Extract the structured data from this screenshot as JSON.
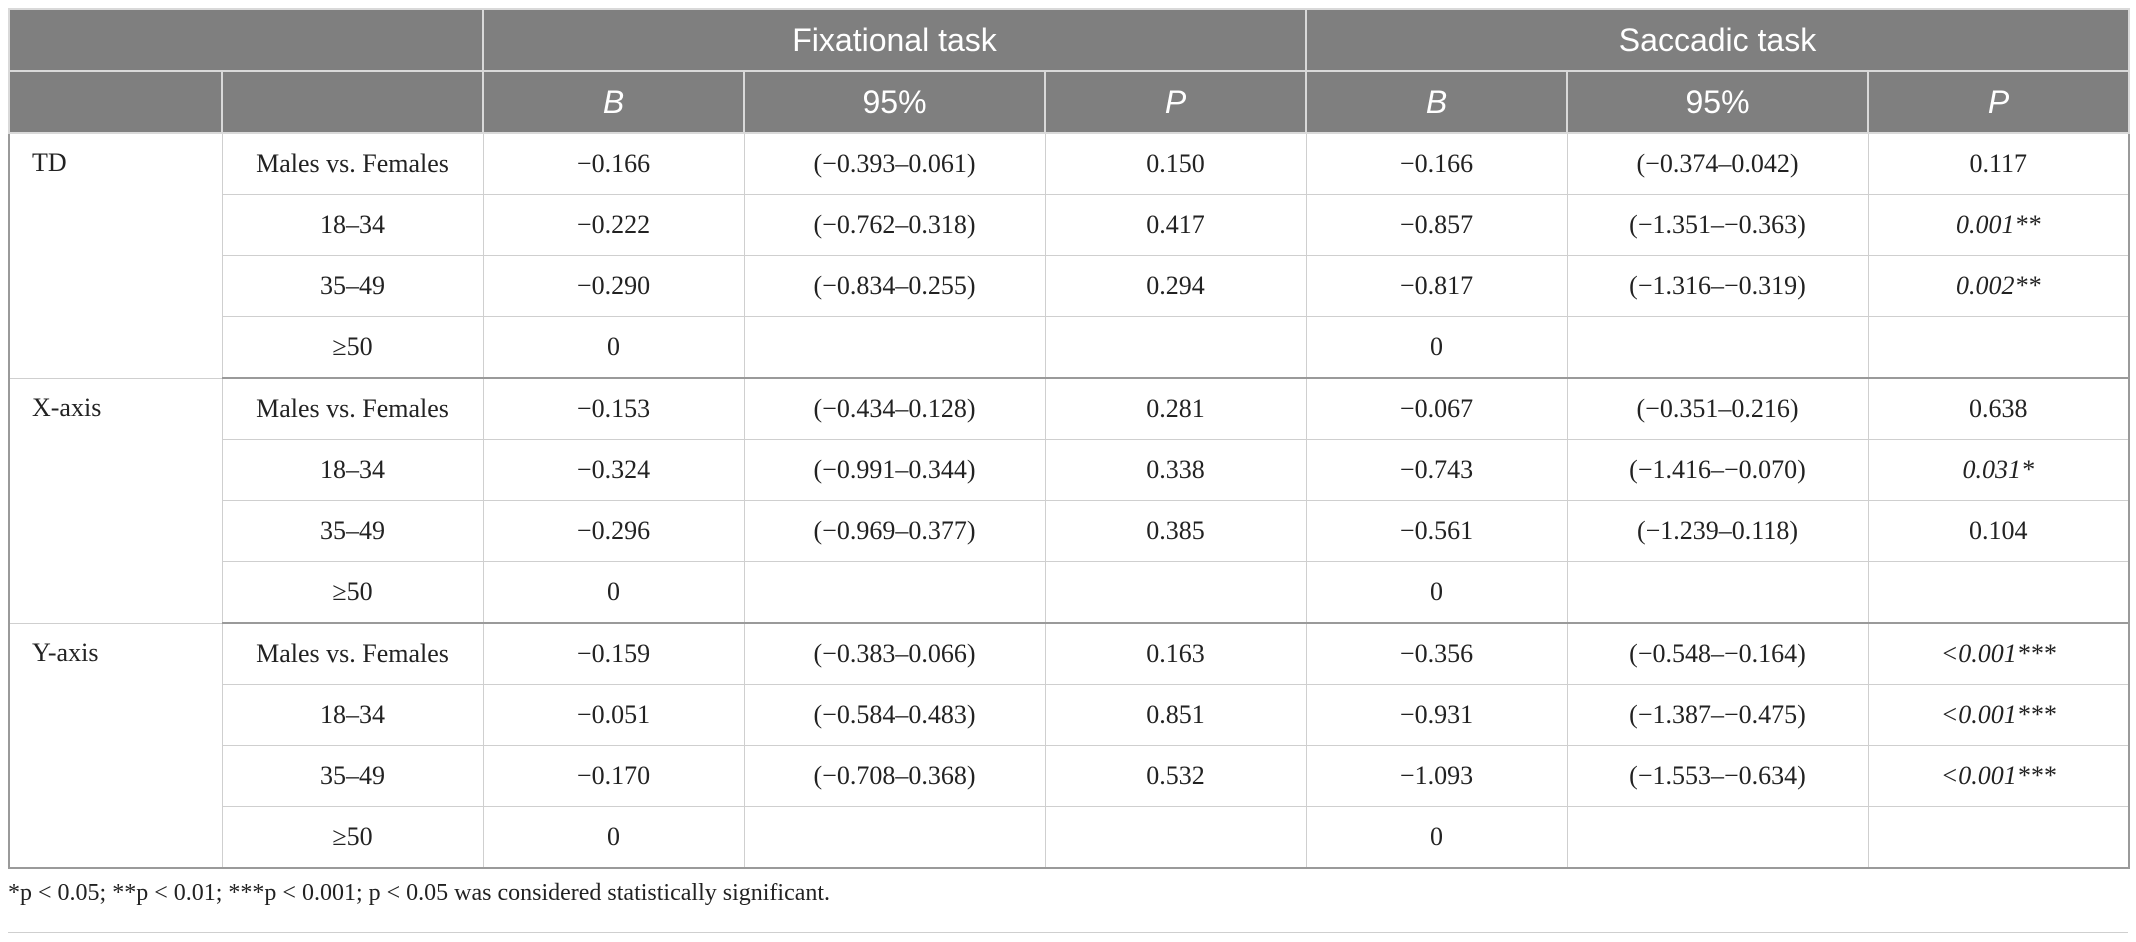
{
  "header": {
    "group_row": [
      "",
      "Fixational task",
      "Saccadic task"
    ],
    "col_row": [
      "",
      "",
      "B",
      "95%",
      "P",
      "B",
      "95%",
      "P"
    ]
  },
  "groups": [
    {
      "label": "TD",
      "rows": [
        {
          "factor": "Males vs. Females",
          "fb": "−0.166",
          "fci": "(−0.393–0.061)",
          "fp": "0.150",
          "sb": "−0.166",
          "sci": "(−0.374–0.042)",
          "sp": "0.117",
          "sig": false
        },
        {
          "factor": "18–34",
          "fb": "−0.222",
          "fci": "(−0.762–0.318)",
          "fp": "0.417",
          "sb": "−0.857",
          "sci": "(−1.351–−0.363)",
          "sp": "0.001**",
          "sig": true
        },
        {
          "factor": "35–49",
          "fb": "−0.290",
          "fci": "(−0.834–0.255)",
          "fp": "0.294",
          "sb": "−0.817",
          "sci": "(−1.316–−0.319)",
          "sp": "0.002**",
          "sig": true
        },
        {
          "factor": "≥50",
          "fb": "0",
          "fci": "",
          "fp": "",
          "sb": "0",
          "sci": "",
          "sp": "",
          "sig": false
        }
      ]
    },
    {
      "label": "X-axis",
      "rows": [
        {
          "factor": "Males vs. Females",
          "fb": "−0.153",
          "fci": "(−0.434–0.128)",
          "fp": "0.281",
          "sb": "−0.067",
          "sci": "(−0.351–0.216)",
          "sp": "0.638",
          "sig": false
        },
        {
          "factor": "18–34",
          "fb": "−0.324",
          "fci": "(−0.991–0.344)",
          "fp": "0.338",
          "sb": "−0.743",
          "sci": "(−1.416–−0.070)",
          "sp": "0.031*",
          "sig": true
        },
        {
          "factor": "35–49",
          "fb": "−0.296",
          "fci": "(−0.969–0.377)",
          "fp": "0.385",
          "sb": "−0.561",
          "sci": "(−1.239–0.118)",
          "sp": "0.104",
          "sig": false
        },
        {
          "factor": "≥50",
          "fb": "0",
          "fci": "",
          "fp": "",
          "sb": "0",
          "sci": "",
          "sp": "",
          "sig": false
        }
      ]
    },
    {
      "label": "Y-axis",
      "rows": [
        {
          "factor": "Males vs. Females",
          "fb": "−0.159",
          "fci": "(−0.383–0.066)",
          "fp": "0.163",
          "sb": "−0.356",
          "sci": "(−0.548–−0.164)",
          "sp": "<0.001***",
          "sig": true
        },
        {
          "factor": "18–34",
          "fb": "−0.051",
          "fci": "(−0.584–0.483)",
          "fp": "0.851",
          "sb": "−0.931",
          "sci": "(−1.387–−0.475)",
          "sp": "<0.001***",
          "sig": true
        },
        {
          "factor": "35–49",
          "fb": "−0.170",
          "fci": "(−0.708–0.368)",
          "fp": "0.532",
          "sb": "−1.093",
          "sci": "(−1.553–−0.634)",
          "sp": "<0.001***",
          "sig": true
        },
        {
          "factor": "≥50",
          "fb": "0",
          "fci": "",
          "fp": "",
          "sb": "0",
          "sci": "",
          "sp": "",
          "sig": false
        }
      ]
    }
  ],
  "footnote": "*p < 0.05; **p < 0.01; ***p < 0.001; p < 0.05 was considered statistically significant."
}
